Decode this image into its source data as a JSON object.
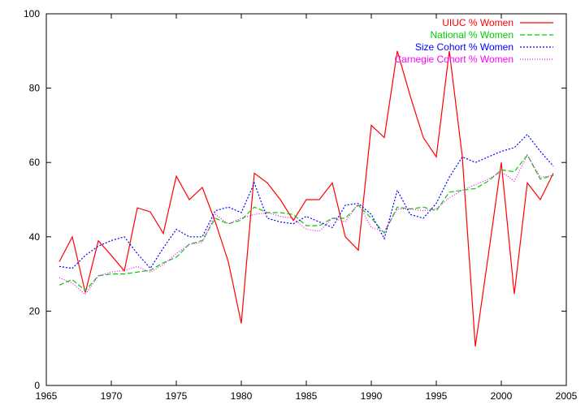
{
  "chart_data": {
    "type": "line",
    "title": "",
    "xlabel": "",
    "ylabel": "",
    "xlim": [
      1965,
      2005
    ],
    "ylim": [
      0,
      100
    ],
    "xticks": [
      1965,
      1970,
      1975,
      1980,
      1985,
      1990,
      1995,
      2000,
      2005
    ],
    "yticks": [
      0,
      20,
      40,
      60,
      80,
      100
    ],
    "grid": false,
    "legend_position": "top-right",
    "x": [
      1966,
      1967,
      1968,
      1969,
      1970,
      1971,
      1972,
      1973,
      1974,
      1975,
      1976,
      1977,
      1978,
      1979,
      1980,
      1981,
      1982,
      1983,
      1984,
      1985,
      1986,
      1987,
      1988,
      1989,
      1990,
      1991,
      1992,
      1993,
      1994,
      1995,
      1996,
      1997,
      1998,
      1999,
      2000,
      2001,
      2002,
      2003,
      2004
    ],
    "series": [
      {
        "name": "UIUC % Women",
        "color": "#ff0000",
        "dash": "",
        "values": [
          33.3,
          40,
          25,
          38.9,
          35,
          30.8,
          47.8,
          46.7,
          40.9,
          56.3,
          50,
          53.3,
          44,
          33.3,
          16.7,
          57.1,
          54.5,
          50,
          44.4,
          50,
          50,
          54.5,
          40,
          36.4,
          70,
          66.7,
          90,
          77.8,
          66.7,
          61.5,
          90,
          61.5,
          10.5,
          35,
          60,
          24.6,
          54.5,
          50,
          57.1
        ]
      },
      {
        "name": "National % Women",
        "color": "#00cc00",
        "dash": "6,3",
        "values": [
          27,
          28.5,
          25.5,
          29.5,
          30,
          30,
          30.5,
          31,
          33,
          34.5,
          38,
          39,
          45,
          43.5,
          44.5,
          48,
          46.5,
          46.5,
          46,
          43,
          43,
          45,
          45,
          48.5,
          45,
          41,
          48,
          47.5,
          48,
          47,
          52,
          52.5,
          53,
          55,
          58,
          57.5,
          62,
          55.5,
          56.5
        ]
      },
      {
        "name": "Size Cohort % Women",
        "color": "#0000ff",
        "dash": "2,2",
        "values": [
          32,
          31.5,
          35,
          37.5,
          39,
          40,
          35.5,
          31.5,
          37,
          42,
          40,
          40,
          47,
          48,
          46.5,
          54.5,
          45,
          44,
          43.5,
          45.5,
          44,
          42.5,
          48.5,
          49,
          46,
          39.5,
          52.5,
          46,
          45,
          49,
          56,
          61.5,
          60,
          61.5,
          63,
          64,
          67.5,
          63,
          59
        ]
      },
      {
        "name": "Carnegie Cohort % Women",
        "color": "#ff00ff",
        "dash": "1,2",
        "values": [
          29,
          27.5,
          24.5,
          29.5,
          30.5,
          31,
          32,
          30.5,
          32.5,
          35.5,
          38,
          38.5,
          46,
          43.5,
          45,
          46,
          46.5,
          45.5,
          45,
          42,
          41.5,
          45,
          44,
          49,
          42.5,
          41.5,
          47.5,
          47.5,
          47,
          47.5,
          50.5,
          52.5,
          54,
          55.5,
          57.5,
          55,
          62,
          56,
          56.5
        ]
      }
    ]
  }
}
